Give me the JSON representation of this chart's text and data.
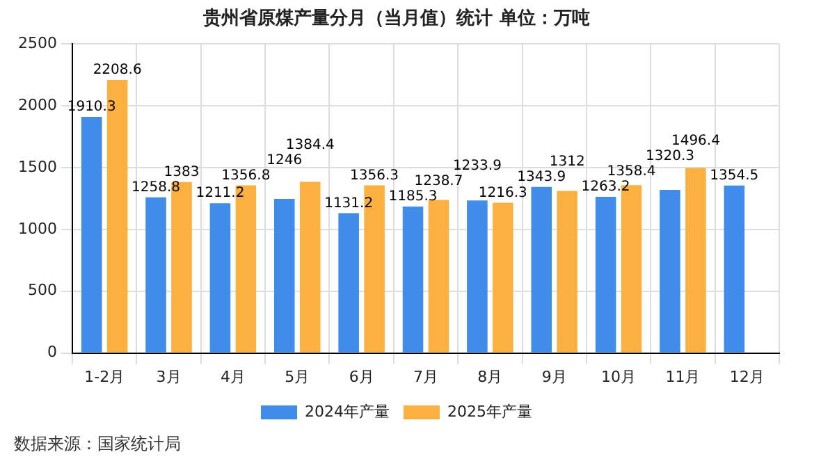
{
  "chart_data": {
    "type": "bar",
    "title": "贵州省原煤产量分月（当月值）统计 单位：万吨",
    "categories": [
      "1-2月",
      "3月",
      "4月",
      "5月",
      "6月",
      "7月",
      "8月",
      "9月",
      "10月",
      "11月",
      "12月"
    ],
    "series": [
      {
        "name": "2024年产量",
        "color": "#3f8ceb",
        "values": [
          1910.3,
          1258.8,
          1211.2,
          1246,
          1131.2,
          1185.3,
          1233.9,
          1343.9,
          1263.2,
          1320.3,
          1354.5
        ]
      },
      {
        "name": "2025年产量",
        "color": "#fbb03f",
        "values": [
          2208.6,
          1383,
          1356.8,
          1384.4,
          1356.3,
          1238.7,
          1216.3,
          1312,
          1358.4,
          1496.4,
          null
        ]
      }
    ],
    "ylim": [
      0,
      2500
    ],
    "yticks": [
      0,
      500,
      1000,
      1500,
      2000,
      2500
    ],
    "grid": true,
    "legend": "bottom",
    "data_labels": true,
    "annotations": [
      "数据来源：国家统计局"
    ]
  }
}
